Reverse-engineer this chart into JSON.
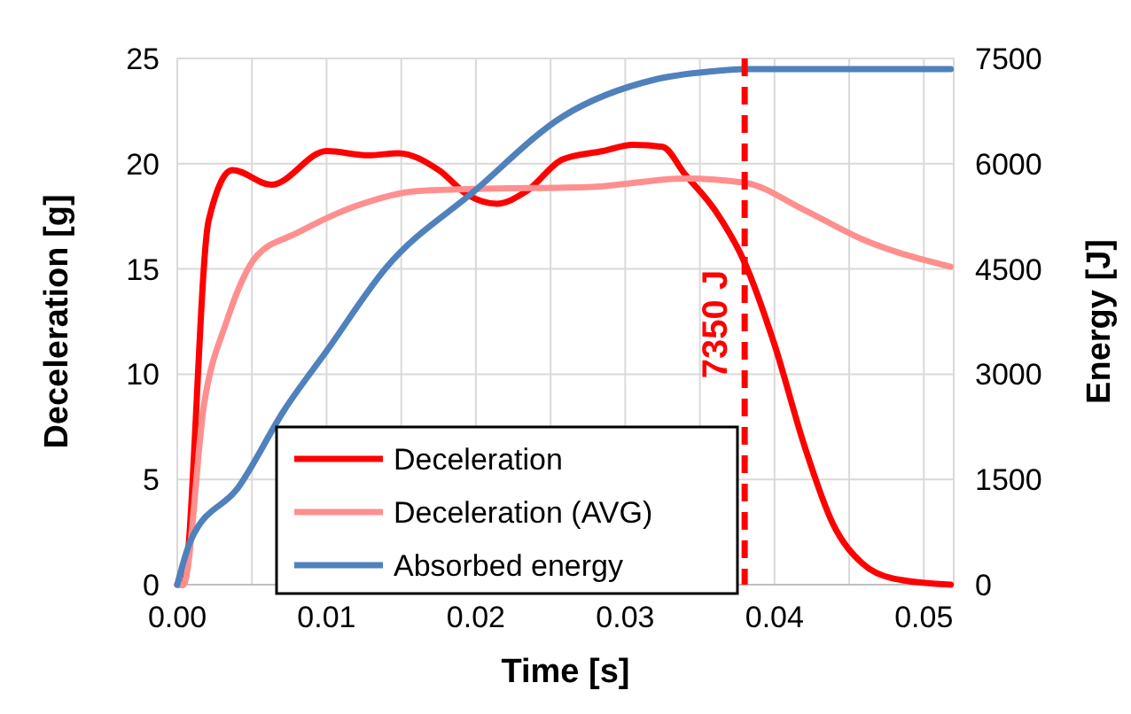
{
  "chart_data": {
    "type": "line",
    "xlabel": "Time [s]",
    "ylabel": "Deceleration [g]",
    "y2label": "Energy [J]",
    "xlim": [
      0,
      0.052
    ],
    "xticks": [
      {
        "value": 0,
        "label": "0.00"
      },
      {
        "value": 0.005,
        "label": null
      },
      {
        "value": 0.01,
        "label": "0.01"
      },
      {
        "value": 0.015,
        "label": null
      },
      {
        "value": 0.02,
        "label": "0.02"
      },
      {
        "value": 0.025,
        "label": null
      },
      {
        "value": 0.03,
        "label": "0.03"
      },
      {
        "value": 0.035,
        "label": null
      },
      {
        "value": 0.04,
        "label": "0.04"
      },
      {
        "value": 0.045,
        "label": null
      },
      {
        "value": 0.05,
        "label": "0.05"
      }
    ],
    "ylim": [
      0,
      25
    ],
    "yticks": [
      0,
      5,
      10,
      15,
      20,
      25
    ],
    "y2lim": [
      0,
      7500
    ],
    "y2ticks": [
      0,
      1500,
      3000,
      4500,
      6000,
      7500
    ],
    "grid": true,
    "legend": "bottom left",
    "marker": "none",
    "line_style": "solid",
    "ref_lines": [
      {
        "axis": "x",
        "value": 0.038,
        "label": "7350 J",
        "color": "#ff0000",
        "line_style": "dashed"
      }
    ],
    "series": [
      {
        "name": "Deceleration",
        "color": "#ff0000",
        "x": [
          0,
          0.0004,
          0.0021,
          0.0037,
          0.0063,
          0.01,
          0.0128,
          0.0148,
          0.0175,
          0.0195,
          0.0214,
          0.0234,
          0.0258,
          0.0285,
          0.0305,
          0.0325,
          0.034,
          0.036,
          0.038,
          0.04,
          0.042,
          0.0439,
          0.0459,
          0.0479,
          0.0518
        ],
        "values": [
          0,
          0,
          17.3,
          19.7,
          19.0,
          20.6,
          20.4,
          20.5,
          19.7,
          18.5,
          18.1,
          18.7,
          20.2,
          20.6,
          20.9,
          20.8,
          19.5,
          17.8,
          15.3,
          11.4,
          6.6,
          2.9,
          1.0,
          0.3,
          0
        ]
      },
      {
        "name": "Deceleration (AVG)",
        "color": "#ff8f8f",
        "x": [
          0,
          0.0004,
          0.0018,
          0.0033,
          0.0053,
          0.008,
          0.012,
          0.016,
          0.0199,
          0.0278,
          0.034,
          0.038,
          0.042,
          0.0459,
          0.0518
        ],
        "values": [
          0,
          0,
          8.6,
          12.5,
          15.6,
          16.7,
          18.0,
          18.7,
          18.8,
          18.9,
          19.3,
          19.1,
          17.8,
          16.4,
          15.1
        ]
      },
      {
        "name": "Absorbed energy",
        "color": "#4f81bd",
        "axis": "y2",
        "x": [
          0,
          0.0009,
          0.0041,
          0.0072,
          0.01,
          0.014,
          0.0199,
          0.0258,
          0.032,
          0.036,
          0.038,
          0.0518
        ],
        "values": [
          0,
          630,
          1390,
          2500,
          3330,
          4520,
          5610,
          6670,
          7200,
          7320,
          7350,
          7350
        ]
      }
    ]
  }
}
